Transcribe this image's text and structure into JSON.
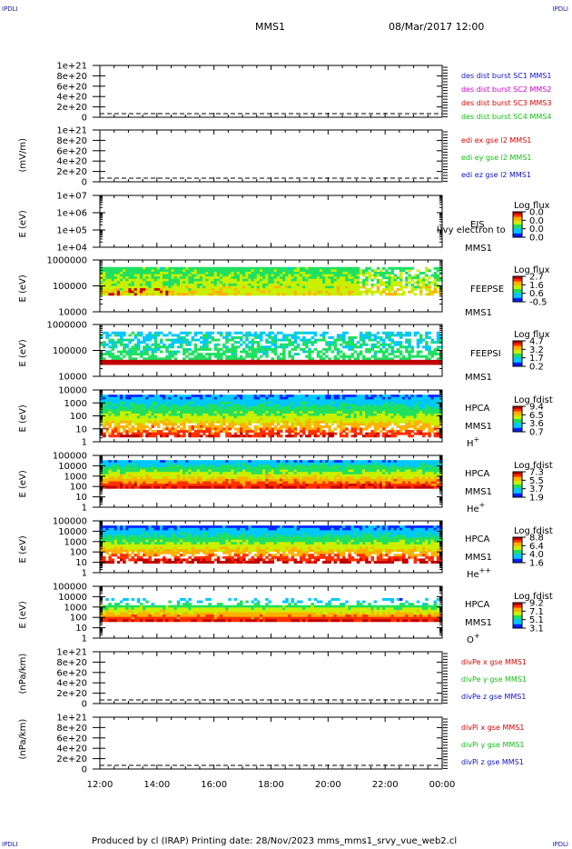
{
  "corner_marks": {
    "top_left": "IPDLI",
    "top_right": "IPDLI",
    "bottom_left": "IPDLI",
    "bottom_right": "IPDLI"
  },
  "header": {
    "mission": "MMS1",
    "datetime": "08/Mar/2017 12:00"
  },
  "footer": {
    "text": "Produced by cl (IRAP)   Printing date: 28/Nov/2023   mms_mms1_srvy_vue_web2.cl"
  },
  "colors": {
    "blue": "#1010c8",
    "magenta": "#d000d0",
    "red": "#e00000",
    "green": "#10c010",
    "black": "#000000"
  },
  "chart_data": [
    {
      "type": "line",
      "ylabel": "",
      "yticks": [
        "1e+21",
        "8e+20",
        "6e+20",
        "4e+20",
        "2e+20",
        "0"
      ],
      "series": [
        {
          "name": "des dist burst SC1 MMS1",
          "color": "#1010c8"
        },
        {
          "name": "des dist burst SC2 MMS2",
          "color": "#d000d0"
        },
        {
          "name": "des dist burst SC3 MMS3",
          "color": "#e00000"
        },
        {
          "name": "des dist burst SC4 MMS4",
          "color": "#10c010"
        }
      ]
    },
    {
      "type": "line",
      "ylabel": "(mV/m)",
      "yticks": [
        "1e+21",
        "8e+20",
        "6e+20",
        "4e+20",
        "2e+20",
        "0"
      ],
      "series": [
        {
          "name": "edi ex gse l2 MMS1",
          "color": "#e00000"
        },
        {
          "name": "edi ey gse l2 MMS1",
          "color": "#10c010"
        },
        {
          "name": "edi ez gse l2 MMS1",
          "color": "#1010c8"
        }
      ]
    },
    {
      "type": "heatmap",
      "ylabel": "E (eV)",
      "yticks": [
        "1e+07",
        "1e+06",
        "1e+05",
        "1e+04"
      ],
      "instrument": [
        "EIS",
        "MMS1"
      ],
      "overlay_text": "l)vy electron to",
      "colorbar": {
        "title": "Log flux",
        "ticks": [
          "0.0",
          "0.0",
          "0.0",
          "0.0"
        ]
      }
    },
    {
      "type": "heatmap",
      "ylabel": "E (eV)",
      "yticks": [
        "1000000",
        "100000",
        "10000"
      ],
      "instrument": [
        "FEEPSE",
        "MMS1"
      ],
      "colorbar": {
        "title": "Log flux",
        "ticks": [
          "2.7",
          "1.6",
          "0.6",
          "-0.5"
        ]
      }
    },
    {
      "type": "heatmap",
      "ylabel": "E (eV)",
      "yticks": [
        "1000000",
        "100000",
        "10000"
      ],
      "instrument": [
        "FEEPSI",
        "MMS1"
      ],
      "colorbar": {
        "title": "Log flux",
        "ticks": [
          "4.7",
          "3.2",
          "1.7",
          "0.2"
        ]
      }
    },
    {
      "type": "heatmap",
      "ylabel": "E (eV)",
      "yticks": [
        "10000",
        "1000",
        "100",
        "10",
        "1"
      ],
      "instrument": [
        "HPCA",
        "MMS1"
      ],
      "species": "H",
      "species_sup": "+",
      "colorbar": {
        "title": "Log fdist",
        "ticks": [
          "9.4",
          "6.5",
          "3.6",
          "0.7"
        ]
      }
    },
    {
      "type": "heatmap",
      "ylabel": "E (eV)",
      "yticks": [
        "100000",
        "10000",
        "1000",
        "100",
        "10",
        "1"
      ],
      "instrument": [
        "HPCA",
        "MMS1"
      ],
      "species": "He",
      "species_sup": "+",
      "colorbar": {
        "title": "Log fdist",
        "ticks": [
          "7.3",
          "5.5",
          "3.7",
          "1.9"
        ]
      }
    },
    {
      "type": "heatmap",
      "ylabel": "E (eV)",
      "yticks": [
        "100000",
        "10000",
        "1000",
        "100",
        "10",
        "1"
      ],
      "instrument": [
        "HPCA",
        "MMS1"
      ],
      "species": "He",
      "species_sup": "++",
      "colorbar": {
        "title": "Log fdist",
        "ticks": [
          "8.8",
          "6.4",
          "4.0",
          "1.6"
        ]
      }
    },
    {
      "type": "heatmap",
      "ylabel": "E (eV)",
      "yticks": [
        "100000",
        "10000",
        "1000",
        "100",
        "10",
        "1"
      ],
      "instrument": [
        "HPCA",
        "MMS1"
      ],
      "species": "O",
      "species_sup": "+",
      "colorbar": {
        "title": "Log fdist",
        "ticks": [
          "9.2",
          "7.1",
          "5.1",
          "3.1"
        ]
      }
    },
    {
      "type": "line",
      "ylabel": "(nPa/km)",
      "yticks": [
        "1e+21",
        "8e+20",
        "6e+20",
        "4e+20",
        "2e+20",
        "0"
      ],
      "series": [
        {
          "name": "divPe x gse MMS1",
          "color": "#e00000"
        },
        {
          "name": "divPe y gse MMS1",
          "color": "#10c010"
        },
        {
          "name": "divPe z gse MMS1",
          "color": "#1010c8"
        }
      ]
    },
    {
      "type": "line",
      "ylabel": "(nPa/km)",
      "yticks": [
        "1e+21",
        "8e+20",
        "6e+20",
        "4e+20",
        "2e+20",
        "0"
      ],
      "series": [
        {
          "name": "divPi x gse MMS1",
          "color": "#e00000"
        },
        {
          "name": "divPi y gse MMS1",
          "color": "#10c010"
        },
        {
          "name": "divPi z gse MMS1",
          "color": "#1010c8"
        }
      ]
    }
  ],
  "xaxis": {
    "ticks": [
      "12:00",
      "14:00",
      "16:00",
      "18:00",
      "20:00",
      "22:00",
      "00:00"
    ]
  }
}
